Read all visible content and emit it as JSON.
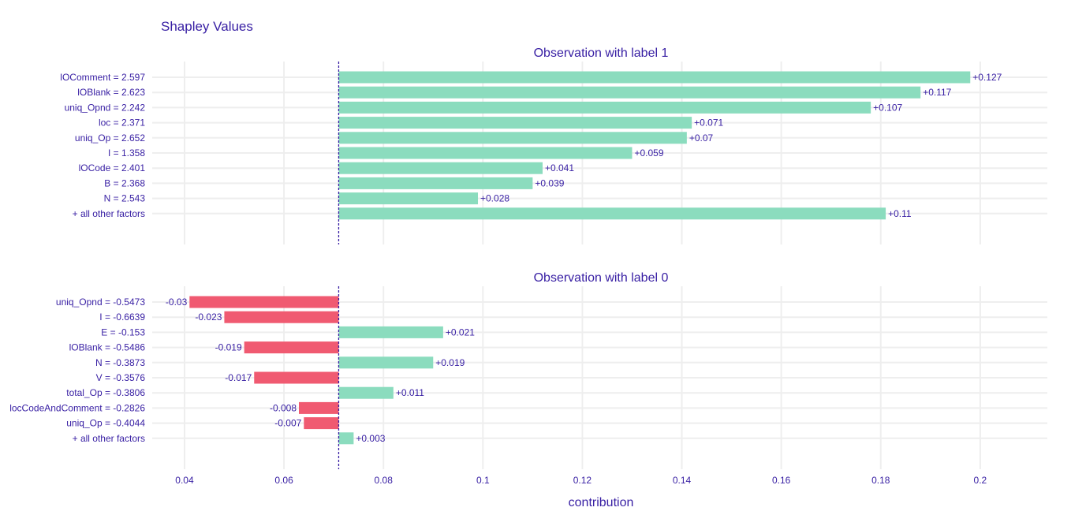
{
  "chart_data": {
    "type": "bar",
    "title": "Shapley Values",
    "xlabel": "contribution",
    "xlim": [
      0.0335,
      0.2135
    ],
    "baseline": 0.071,
    "x_ticks": [
      0.04,
      0.06,
      0.08,
      0.1,
      0.12,
      0.14,
      0.16,
      0.18,
      0.2
    ],
    "x_tick_labels": [
      "0.04",
      "0.06",
      "0.08",
      "0.1",
      "0.12",
      "0.14",
      "0.16",
      "0.18",
      "0.2"
    ],
    "colors": {
      "positive": "#8bdcbe",
      "negative": "#f05a71",
      "baseline": "#371ea3",
      "grid": "#eeeeee",
      "text": "#371ea3"
    },
    "panels": [
      {
        "subtitle": "Observation with label 1",
        "bars": [
          {
            "label": "lOComment = 2.597",
            "value": 0.127,
            "value_label": "+0.127"
          },
          {
            "label": "lOBlank = 2.623",
            "value": 0.117,
            "value_label": "+0.117"
          },
          {
            "label": "uniq_Opnd = 2.242",
            "value": 0.107,
            "value_label": "+0.107"
          },
          {
            "label": "loc = 2.371",
            "value": 0.071,
            "value_label": "+0.071"
          },
          {
            "label": "uniq_Op = 2.652",
            "value": 0.07,
            "value_label": "+0.07"
          },
          {
            "label": "I = 1.358",
            "value": 0.059,
            "value_label": "+0.059"
          },
          {
            "label": "lOCode = 2.401",
            "value": 0.041,
            "value_label": "+0.041"
          },
          {
            "label": "B = 2.368",
            "value": 0.039,
            "value_label": "+0.039"
          },
          {
            "label": "N = 2.543",
            "value": 0.028,
            "value_label": "+0.028"
          },
          {
            "label": "+ all other factors",
            "value": 0.11,
            "value_label": "+0.11"
          }
        ]
      },
      {
        "subtitle": "Observation with label 0",
        "bars": [
          {
            "label": "uniq_Opnd = -0.5473",
            "value": -0.03,
            "value_label": "-0.03"
          },
          {
            "label": "I = -0.6639",
            "value": -0.023,
            "value_label": "-0.023"
          },
          {
            "label": "E = -0.153",
            "value": 0.021,
            "value_label": "+0.021"
          },
          {
            "label": "lOBlank = -0.5486",
            "value": -0.019,
            "value_label": "-0.019"
          },
          {
            "label": "N = -0.3873",
            "value": 0.019,
            "value_label": "+0.019"
          },
          {
            "label": "V = -0.3576",
            "value": -0.017,
            "value_label": "-0.017"
          },
          {
            "label": "total_Op = -0.3806",
            "value": 0.011,
            "value_label": "+0.011"
          },
          {
            "label": "locCodeAndComment = -0.2826",
            "value": -0.008,
            "value_label": "-0.008"
          },
          {
            "label": "uniq_Op = -0.4044",
            "value": -0.007,
            "value_label": "-0.007"
          },
          {
            "label": "+ all other factors",
            "value": 0.003,
            "value_label": "+0.003"
          }
        ]
      }
    ]
  }
}
